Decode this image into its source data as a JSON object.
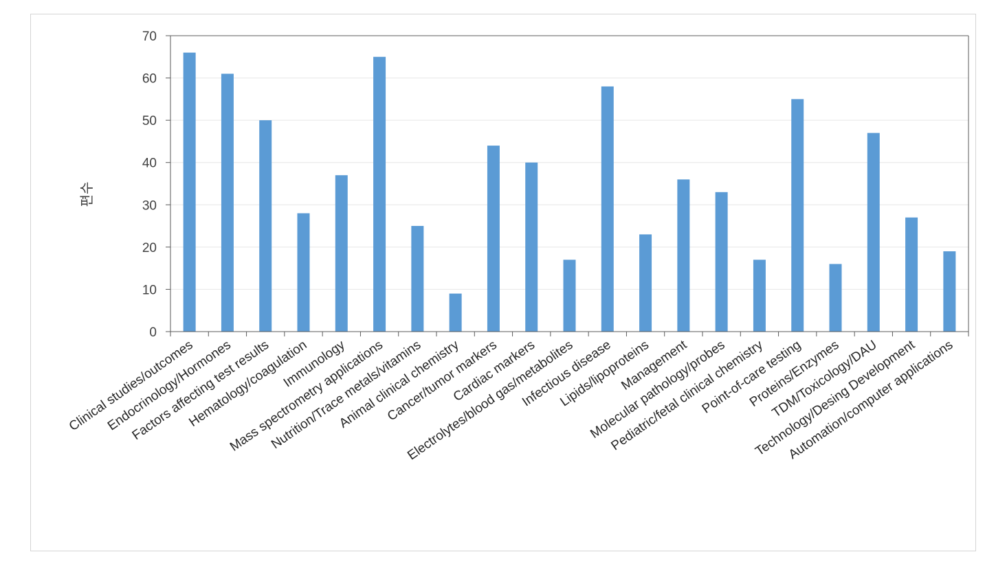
{
  "chart_data": {
    "type": "bar",
    "title": "",
    "xlabel": "",
    "ylabel": "편수",
    "ylim": [
      0,
      70
    ],
    "yticks": [
      0,
      10,
      20,
      30,
      40,
      50,
      60,
      70
    ],
    "grid": true,
    "legend": "none",
    "bar_color": "#5b9bd5",
    "categories": [
      "Clinical studies/outcomes",
      "Endocrinology/Hormones",
      "Factors affecting test results",
      "Hematology/coagulation",
      "Immunology",
      "Mass spectrometry applications",
      "Nutrition/Trace metals/vitamins",
      "Animal clinical chemistry",
      "Cancer/tumor markers",
      "Cardiac markers",
      "Electrolytes/blood gas/metabolites",
      "Infectious disease",
      "Lipids/lipoproteins",
      "Management",
      "Molecular pathology/probes",
      "Pediatric/fetal clinical chemistry",
      "Point-of-care testing",
      "Proteins/Enzymes",
      "TDM/Toxicology/DAU",
      "Technology/Desing Development",
      "Automation/computer applications"
    ],
    "values": [
      66,
      61,
      50,
      28,
      37,
      65,
      25,
      9,
      44,
      40,
      17,
      58,
      23,
      36,
      33,
      17,
      55,
      16,
      47,
      27,
      19
    ]
  }
}
